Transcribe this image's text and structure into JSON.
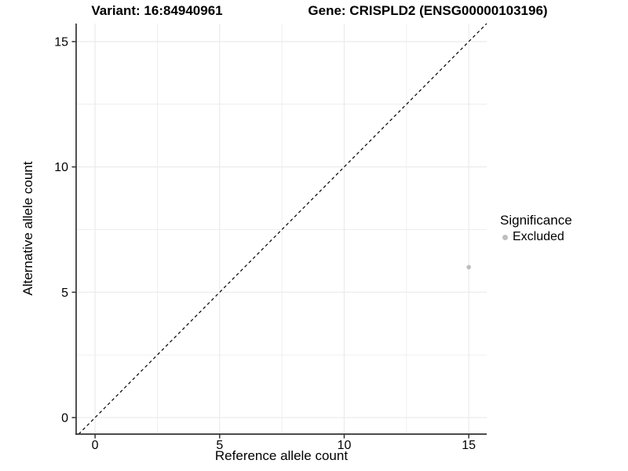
{
  "chart_data": {
    "type": "scatter",
    "titles": {
      "left": "Variant: 16:84940961",
      "right": "Gene: CRISPLD2 (ENSG00000103196)"
    },
    "xlabel": "Reference allele count",
    "ylabel": "Alternative allele count",
    "x_ticks": [
      0,
      5,
      10,
      15
    ],
    "y_ticks": [
      0,
      5,
      10,
      15
    ],
    "xlim": [
      -0.76,
      15.72
    ],
    "ylim": [
      -0.66,
      15.72
    ],
    "grid": true,
    "minor_grid": true,
    "reference_line": {
      "equation": "y = x",
      "style": "dashed",
      "color": "#000000"
    },
    "series": [
      {
        "name": "Excluded",
        "color": "#bebebe",
        "points": [
          {
            "x": 15,
            "y": 6
          }
        ]
      }
    ],
    "legend": {
      "position": "right",
      "title": "Significance",
      "entries": [
        {
          "label": "Excluded",
          "color": "#bebebe"
        }
      ]
    },
    "colors": {
      "background": "#ffffff",
      "grid": "#ebebeb",
      "axis": "#333333",
      "text": "#000000"
    }
  }
}
